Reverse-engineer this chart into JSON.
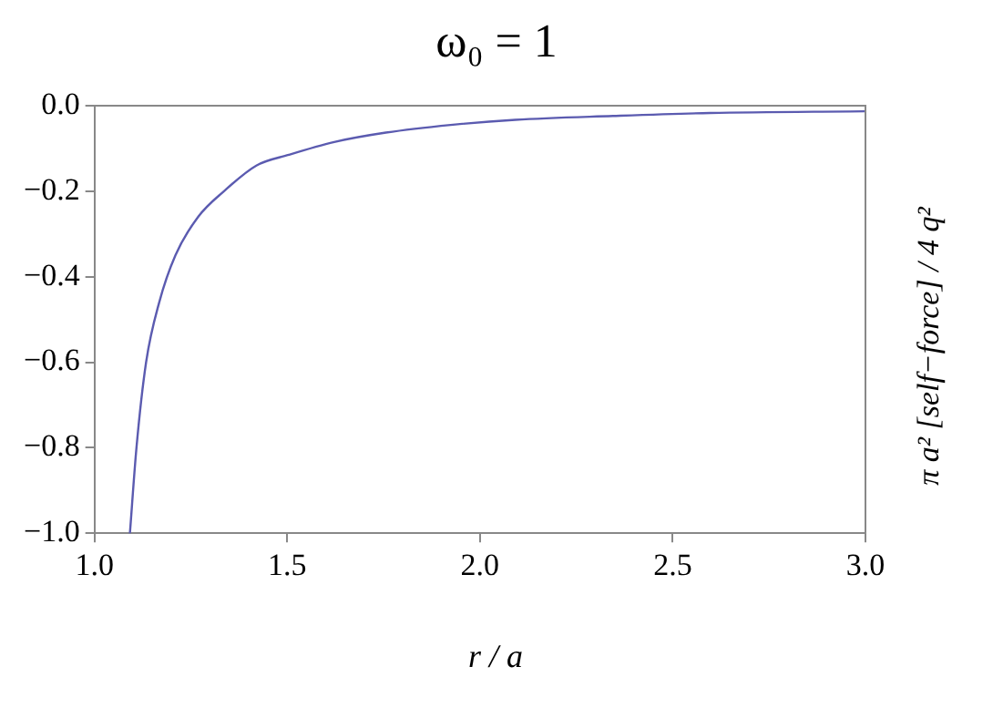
{
  "chart_data": {
    "type": "line",
    "title": "ω₀ = 1",
    "xlabel": "r / a",
    "ylabel": "π a² [self−force] / 4 q²",
    "xlim": [
      1.0,
      3.0
    ],
    "xticks": [
      {
        "value": 1.0,
        "label": "1.0"
      },
      {
        "value": 1.5,
        "label": "1.5"
      },
      {
        "value": 2.0,
        "label": "2.0"
      },
      {
        "value": 2.5,
        "label": "2.5"
      },
      {
        "value": 3.0,
        "label": "3.0"
      }
    ],
    "ylim": [
      -1.0,
      0.0
    ],
    "yticks": [
      {
        "value": -1.0,
        "label": "−1.0"
      },
      {
        "value": -0.8,
        "label": "−0.8"
      },
      {
        "value": -0.6,
        "label": "−0.6"
      },
      {
        "value": -0.4,
        "label": "−0.4"
      },
      {
        "value": -0.2,
        "label": "−0.2"
      },
      {
        "value": 0.0,
        "label": "0.0"
      }
    ],
    "marker": "none",
    "line_style": "solid",
    "series": [
      {
        "color": "#5b5bb0",
        "x": [
          1.092,
          1.109,
          1.134,
          1.168,
          1.21,
          1.269,
          1.336,
          1.42,
          1.504,
          1.622,
          1.756,
          1.924,
          2.092,
          2.345,
          2.597,
          3.0
        ],
        "values": [
          -1.0,
          -0.8,
          -0.6,
          -0.46,
          -0.35,
          -0.26,
          -0.2,
          -0.14,
          -0.115,
          -0.085,
          -0.063,
          -0.045,
          -0.033,
          -0.024,
          -0.017,
          -0.013
        ]
      }
    ]
  }
}
